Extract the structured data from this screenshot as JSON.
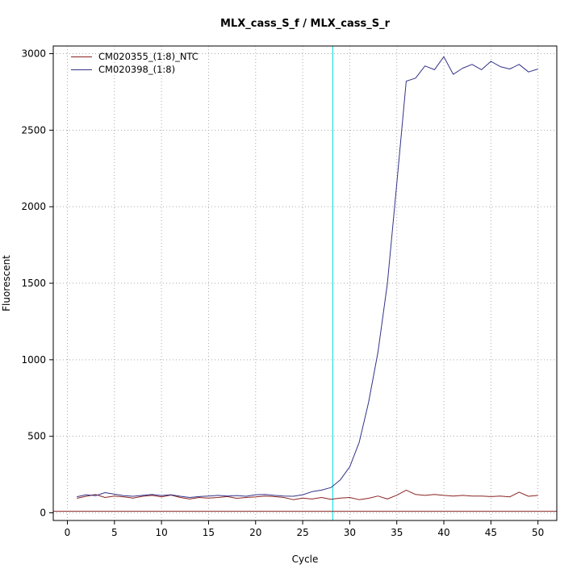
{
  "chart_data": {
    "type": "line",
    "title": "MLX_cass_S_f / MLX_cass_S_r",
    "xlabel": "Cycle",
    "ylabel": "Fluorescent",
    "xlim": [
      -1.5,
      52
    ],
    "ylim": [
      -50,
      3050
    ],
    "xticks": [
      0,
      5,
      10,
      15,
      20,
      25,
      30,
      35,
      40,
      45,
      50
    ],
    "yticks": [
      0,
      500,
      1000,
      1500,
      2000,
      2500,
      3000
    ],
    "grid": "dotted",
    "legend_position": "top-left",
    "threshold_vline_x": 28.2,
    "threshold_vline_color": "#00dddd",
    "baseline_hline_y": 10,
    "baseline_hline_color": "#8b2323",
    "x": [
      1,
      2,
      3,
      4,
      5,
      6,
      7,
      8,
      9,
      10,
      11,
      12,
      13,
      14,
      15,
      16,
      17,
      18,
      19,
      20,
      21,
      22,
      23,
      24,
      25,
      26,
      27,
      28,
      29,
      30,
      31,
      32,
      33,
      34,
      35,
      36,
      37,
      38,
      39,
      40,
      41,
      42,
      43,
      44,
      45,
      46,
      47,
      48,
      49,
      50
    ],
    "series": [
      {
        "name": "CM020355_(1:8)_NTC",
        "color": "#8b2323",
        "values": [
          95,
          108,
          120,
          100,
          110,
          104,
          96,
          108,
          114,
          104,
          116,
          100,
          90,
          100,
          96,
          100,
          106,
          95,
          100,
          104,
          110,
          106,
          100,
          86,
          96,
          90,
          100,
          88,
          96,
          100,
          86,
          95,
          110,
          90,
          115,
          148,
          120,
          114,
          120,
          114,
          110,
          114,
          110,
          110,
          106,
          110,
          104,
          135,
          108,
          114
        ]
      },
      {
        "name": "CM020398_(1:8)",
        "color": "#333388",
        "values": [
          105,
          118,
          112,
          132,
          122,
          112,
          108,
          114,
          120,
          113,
          118,
          108,
          100,
          106,
          110,
          114,
          110,
          113,
          108,
          118,
          120,
          114,
          110,
          108,
          118,
          138,
          148,
          165,
          215,
          300,
          460,
          720,
          1050,
          1500,
          2150,
          2820,
          2840,
          2920,
          2895,
          2980,
          2865,
          2905,
          2930,
          2895,
          2950,
          2915,
          2900,
          2930,
          2880,
          2900
        ]
      }
    ]
  }
}
